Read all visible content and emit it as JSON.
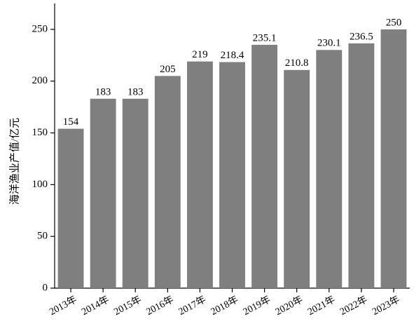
{
  "chart_data": {
    "type": "bar",
    "y_label": "海洋渔业产值/亿元",
    "categories": [
      "2013年",
      "2014年",
      "2015年",
      "2016年",
      "2017年",
      "2018年",
      "2019年",
      "2020年",
      "2021年",
      "2022年",
      "2023年"
    ],
    "values": [
      154,
      183,
      183,
      205,
      219,
      218.4,
      235.1,
      210.8,
      230.1,
      236.5,
      250
    ],
    "color": "#7f7f7f",
    "ylim": [
      0,
      275
    ],
    "yticks": [
      0,
      50,
      100,
      150,
      200,
      250
    ],
    "grid": false
  }
}
